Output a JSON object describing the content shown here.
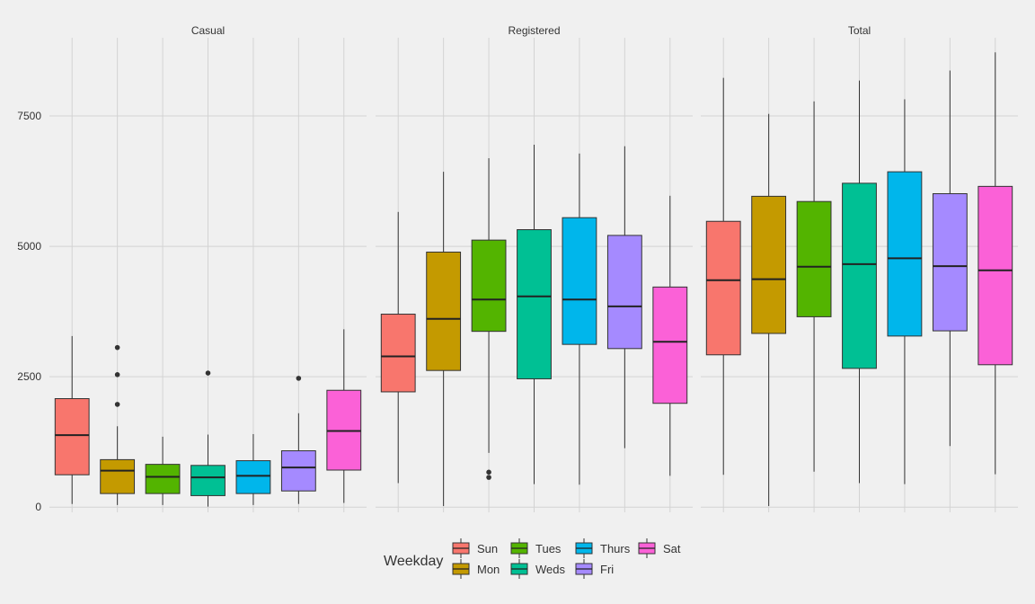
{
  "chart_data": {
    "type": "boxplot",
    "facets": [
      "Casual",
      "Registered",
      "Total"
    ],
    "categories": [
      "Sun",
      "Mon",
      "Tues",
      "Weds",
      "Thurs",
      "Fri",
      "Sat"
    ],
    "colors": {
      "Sun": "#F8766D",
      "Mon": "#C49A00",
      "Tues": "#53B400",
      "Weds": "#00C094",
      "Thurs": "#00B6EB",
      "Fri": "#A58AFF",
      "Sat": "#FB61D7"
    },
    "ylim": [
      -100,
      9000
    ],
    "yticks": [
      0,
      2500,
      5000,
      7500
    ],
    "grid": true,
    "legend": {
      "title": "Weekday",
      "position": "bottom",
      "labels": [
        "Sun",
        "Mon",
        "Tues",
        "Weds",
        "Thurs",
        "Fri",
        "Sat"
      ]
    },
    "panels": [
      {
        "name": "Casual",
        "boxes": [
          {
            "cat": "Sun",
            "min": 60,
            "q1": 620,
            "median": 1380,
            "q3": 2080,
            "max": 3280,
            "outliers": []
          },
          {
            "cat": "Mon",
            "min": 40,
            "q1": 260,
            "median": 700,
            "q3": 910,
            "max": 1550,
            "outliers": [
              1970,
              2540,
              3060
            ]
          },
          {
            "cat": "Tues",
            "min": 40,
            "q1": 260,
            "median": 580,
            "q3": 820,
            "max": 1350,
            "outliers": []
          },
          {
            "cat": "Weds",
            "min": 10,
            "q1": 220,
            "median": 570,
            "q3": 800,
            "max": 1390,
            "outliers": [
              2570
            ]
          },
          {
            "cat": "Thurs",
            "min": 40,
            "q1": 260,
            "median": 600,
            "q3": 890,
            "max": 1400,
            "outliers": []
          },
          {
            "cat": "Fri",
            "min": 60,
            "q1": 310,
            "median": 760,
            "q3": 1080,
            "max": 1800,
            "outliers": [
              2470
            ]
          },
          {
            "cat": "Sat",
            "min": 80,
            "q1": 710,
            "median": 1460,
            "q3": 2240,
            "max": 3410,
            "outliers": []
          }
        ]
      },
      {
        "name": "Registered",
        "boxes": [
          {
            "cat": "Sun",
            "min": 460,
            "q1": 2210,
            "median": 2890,
            "q3": 3700,
            "max": 5660,
            "outliers": []
          },
          {
            "cat": "Mon",
            "min": 20,
            "q1": 2620,
            "median": 3610,
            "q3": 4890,
            "max": 6430,
            "outliers": []
          },
          {
            "cat": "Tues",
            "min": 1040,
            "q1": 3370,
            "median": 3980,
            "q3": 5120,
            "max": 6690,
            "outliers": [
              570,
              670
            ]
          },
          {
            "cat": "Weds",
            "min": 440,
            "q1": 2460,
            "median": 4040,
            "q3": 5320,
            "max": 6950,
            "outliers": []
          },
          {
            "cat": "Thurs",
            "min": 430,
            "q1": 3120,
            "median": 3980,
            "q3": 5550,
            "max": 6780,
            "outliers": []
          },
          {
            "cat": "Fri",
            "min": 1130,
            "q1": 3040,
            "median": 3850,
            "q3": 5210,
            "max": 6920,
            "outliers": []
          },
          {
            "cat": "Sat",
            "min": 600,
            "q1": 1990,
            "median": 3170,
            "q3": 4220,
            "max": 5970,
            "outliers": []
          }
        ]
      },
      {
        "name": "Total",
        "boxes": [
          {
            "cat": "Sun",
            "min": 620,
            "q1": 2920,
            "median": 4350,
            "q3": 5480,
            "max": 8230,
            "outliers": []
          },
          {
            "cat": "Mon",
            "min": 20,
            "q1": 3330,
            "median": 4370,
            "q3": 5960,
            "max": 7540,
            "outliers": []
          },
          {
            "cat": "Tues",
            "min": 680,
            "q1": 3650,
            "median": 4610,
            "q3": 5860,
            "max": 7780,
            "outliers": []
          },
          {
            "cat": "Weds",
            "min": 460,
            "q1": 2660,
            "median": 4660,
            "q3": 6210,
            "max": 8180,
            "outliers": []
          },
          {
            "cat": "Thurs",
            "min": 440,
            "q1": 3280,
            "median": 4770,
            "q3": 6430,
            "max": 7820,
            "outliers": []
          },
          {
            "cat": "Fri",
            "min": 1170,
            "q1": 3380,
            "median": 4620,
            "q3": 6010,
            "max": 8370,
            "outliers": []
          },
          {
            "cat": "Sat",
            "min": 630,
            "q1": 2730,
            "median": 4540,
            "q3": 6150,
            "max": 8720,
            "outliers": []
          }
        ]
      }
    ]
  }
}
